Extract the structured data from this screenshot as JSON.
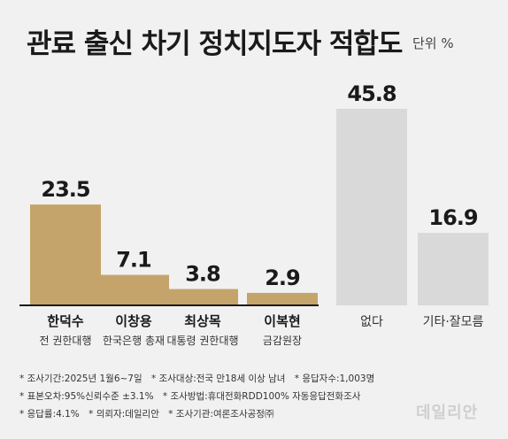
{
  "header": {
    "title": "관료 출신 차기 정치지도자 적합도",
    "unit": "단위 %"
  },
  "chart_data": {
    "type": "bar",
    "title": "관료 출신 차기 정치지도자 적합도",
    "unit": "단위 %",
    "categories": [
      "한덕수",
      "이창용",
      "최상목",
      "이복현",
      "없다",
      "기타·잘모름"
    ],
    "subtitles": [
      "전 권한대행",
      "한국은행 총재",
      "대통령 권한대행",
      "금감원장",
      "",
      ""
    ],
    "values": [
      23.5,
      7.1,
      3.8,
      2.9,
      45.8,
      16.9
    ],
    "value_labels": [
      "23.5",
      "7.1",
      "3.8",
      "2.9",
      "45.8",
      "16.9"
    ],
    "ylim": [
      0,
      45.8
    ],
    "colors": {
      "candidate": "#c4a46a",
      "other": "#d9d9d9",
      "axis": "#1a1a1a"
    }
  },
  "footnotes": {
    "row1": [
      "* 조사기간:2025년 1월6~7일",
      "* 조사대상:전국 만18세 이상 남녀",
      "* 응답자수:1,003명"
    ],
    "row2": [
      "* 표본오차:95%신뢰수준 ±3.1%",
      "* 조사방법:휴대전화RDD100% 자동응답전화조사"
    ],
    "row3": [
      "* 응답률:4.1%",
      "* 의뢰자:데일리안",
      "* 조사기관:여론조사공정㈜"
    ]
  },
  "watermark": "데일리안"
}
